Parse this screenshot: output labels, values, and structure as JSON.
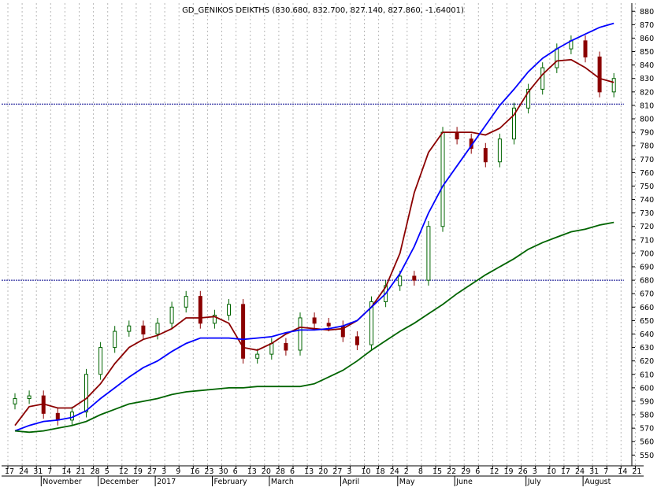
{
  "chart_data": {
    "type": "line",
    "title": "GD_GENIKOS DEIKTHS (830.680, 832.700, 827.140, 827.860, -1.64001)",
    "y_axis_position": "right",
    "ylim": [
      542,
      886
    ],
    "y_ticks": [
      550,
      560,
      570,
      580,
      590,
      600,
      610,
      620,
      630,
      640,
      650,
      660,
      670,
      680,
      690,
      700,
      710,
      720,
      730,
      740,
      750,
      760,
      770,
      780,
      790,
      800,
      810,
      820,
      830,
      840,
      850,
      860,
      870,
      880
    ],
    "horizontal_lines": [
      811,
      680
    ],
    "grid": "vertical dotted",
    "x_tick_labels": [
      "17",
      "24",
      "31",
      "7",
      "14",
      "21",
      "28",
      "5",
      "12",
      "19",
      "27",
      "3",
      "9",
      "16",
      "23",
      "30",
      "6",
      "13",
      "20",
      "28",
      "6",
      "13",
      "20",
      "27",
      "3",
      "10",
      "18",
      "24",
      "2",
      "8",
      "15",
      "22",
      "29",
      "6",
      "12",
      "19",
      "26",
      "3",
      "10",
      "17",
      "24",
      "31",
      "7",
      "14",
      "21"
    ],
    "month_labels": [
      {
        "label": "November",
        "index": 3
      },
      {
        "label": "December",
        "index": 7
      },
      {
        "label": "2017",
        "index": 11
      },
      {
        "label": "February",
        "index": 15
      },
      {
        "label": "March",
        "index": 19
      },
      {
        "label": "April",
        "index": 24
      },
      {
        "label": "May",
        "index": 28
      },
      {
        "label": "June",
        "index": 32
      },
      {
        "label": "July",
        "index": 37
      },
      {
        "label": "August",
        "index": 41
      }
    ],
    "price_weekly_closes": [
      592,
      594,
      581,
      576,
      582,
      610,
      630,
      642,
      646,
      640,
      648,
      660,
      668,
      648,
      654,
      662,
      622,
      625,
      633,
      628,
      652,
      648,
      646,
      638,
      632,
      664,
      676,
      683,
      680,
      720,
      790,
      785,
      778,
      768,
      785,
      808,
      822,
      838,
      852,
      858,
      846,
      820,
      830
    ],
    "series": [
      {
        "name": "",
        "color": "#8b0000",
        "values": [
          572,
          586,
          588,
          585,
          585,
          592,
          603,
          618,
          630,
          636,
          639,
          644,
          652,
          652,
          653,
          648,
          630,
          628,
          633,
          640,
          645,
          644,
          643,
          644,
          650,
          660,
          675,
          700,
          745,
          775,
          790,
          790,
          790,
          788,
          793,
          803,
          820,
          833,
          843,
          844,
          838,
          830,
          827
        ]
      },
      {
        "name": "",
        "color": "#0000ff",
        "values": [
          568,
          572,
          575,
          576,
          578,
          583,
          592,
          600,
          608,
          615,
          620,
          627,
          633,
          637,
          637,
          637,
          636,
          637,
          638,
          641,
          643,
          643,
          644,
          646,
          650,
          660,
          670,
          685,
          705,
          730,
          750,
          765,
          780,
          795,
          810,
          822,
          835,
          845,
          852,
          858,
          863,
          868,
          871
        ]
      },
      {
        "name": "",
        "color": "#006400",
        "values": [
          568,
          567,
          568,
          570,
          572,
          575,
          580,
          584,
          588,
          590,
          592,
          595,
          597,
          598,
          599,
          600,
          600,
          601,
          601,
          601,
          601,
          603,
          608,
          613,
          620,
          628,
          635,
          642,
          648,
          655,
          662,
          670,
          677,
          684,
          690,
          696,
          703,
          708,
          712,
          716,
          718,
          721,
          723
        ]
      }
    ]
  }
}
